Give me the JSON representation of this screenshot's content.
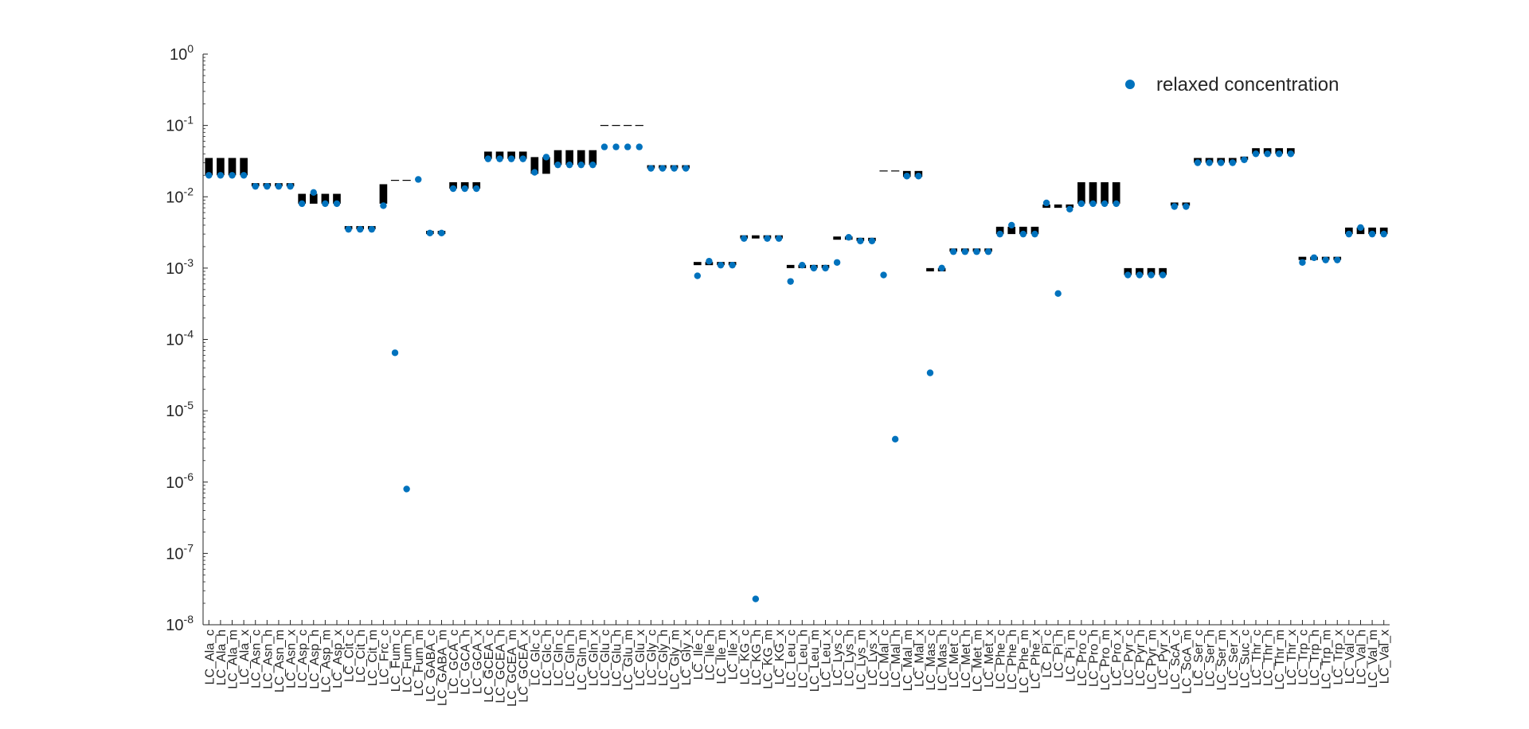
{
  "colors": {
    "marker": "#0072BD",
    "bound": "#000000",
    "axis": "#262626"
  },
  "chart_data": {
    "type": "scatter",
    "title": "",
    "xlabel": "",
    "ylabel": "",
    "yscale": "log",
    "ylim": [
      1e-08,
      1
    ],
    "grid": false,
    "legend": {
      "position": "top-right",
      "entries": [
        "relaxed concentration"
      ]
    },
    "y_tick_exponents": [
      0,
      -1,
      -2,
      -3,
      -4,
      -5,
      -6,
      -7,
      -8
    ],
    "categories": [
      "LC_Ala_c",
      "LC_Ala_h",
      "LC_Ala_m",
      "LC_Ala_x",
      "LC_Asn_c",
      "LC_Asn_h",
      "LC_Asn_m",
      "LC_Asn_x",
      "LC_Asp_c",
      "LC_Asp_h",
      "LC_Asp_m",
      "LC_Asp_x",
      "LC_Cit_c",
      "LC_Cit_h",
      "LC_Cit_m",
      "LC_Frc_c",
      "LC_Fum_c",
      "LC_Fum_h",
      "LC_Fum_m",
      "LC_GABA_c",
      "LC_GABA_m",
      "LC_GCA_c",
      "LC_GCA_h",
      "LC_GCA_x",
      "LC_GCEA_c",
      "LC_GCEA_h",
      "LC_GCEA_m",
      "LC_GCEA_x",
      "LC_Glc_c",
      "LC_Glc_h",
      "LC_Gln_c",
      "LC_Gln_h",
      "LC_Gln_m",
      "LC_Gln_x",
      "LC_Glu_c",
      "LC_Glu_h",
      "LC_Glu_m",
      "LC_Glu_x",
      "LC_Gly_c",
      "LC_Gly_h",
      "LC_Gly_m",
      "LC_Gly_x",
      "LC_Ile_c",
      "LC_Ile_h",
      "LC_Ile_m",
      "LC_Ile_x",
      "LC_KG_c",
      "LC_KG_h",
      "LC_KG_m",
      "LC_KG_x",
      "LC_Leu_c",
      "LC_Leu_h",
      "LC_Leu_m",
      "LC_Leu_x",
      "LC_Lys_c",
      "LC_Lys_h",
      "LC_Lys_m",
      "LC_Lys_x",
      "LC_Mal_c",
      "LC_Mal_h",
      "LC_Mal_m",
      "LC_Mal_x",
      "LC_Mas_c",
      "LC_Mas_h",
      "LC_Met_c",
      "LC_Met_h",
      "LC_Met_m",
      "LC_Met_x",
      "LC_Phe_c",
      "LC_Phe_h",
      "LC_Phe_m",
      "LC_Phe_x",
      "LC_Pi_c",
      "LC_Pi_h",
      "LC_Pi_m",
      "LC_Pro_c",
      "LC_Pro_h",
      "LC_Pro_m",
      "LC_Pro_x",
      "LC_Pyr_c",
      "LC_Pyr_h",
      "LC_Pyr_m",
      "LC_Pyr_x",
      "LC_ScA_c",
      "LC_ScA_m",
      "LC_Ser_c",
      "LC_Ser_h",
      "LC_Ser_m",
      "LC_Ser_x",
      "LC_Suc_c",
      "LC_Thr_c",
      "LC_Thr_h",
      "LC_Thr_m",
      "LC_Thr_x",
      "LC_Trp_c",
      "LC_Trp_h",
      "LC_Trp_m",
      "LC_Trp_x",
      "LC_Val_c",
      "LC_Val_h",
      "LC_Val_m",
      "LC_Val_x"
    ],
    "series": [
      {
        "name": "relaxed concentration",
        "marker": "dot",
        "values": [
          0.02,
          0.02,
          0.02,
          0.02,
          0.014,
          0.014,
          0.014,
          0.014,
          0.008,
          0.0115,
          0.008,
          0.008,
          0.0035,
          0.0035,
          0.0035,
          0.0075,
          6.5e-05,
          8e-07,
          0.0175,
          0.0031,
          0.0031,
          0.013,
          0.013,
          0.013,
          0.034,
          0.034,
          0.034,
          0.034,
          0.022,
          0.036,
          0.028,
          0.028,
          0.028,
          0.028,
          0.05,
          0.05,
          0.05,
          0.05,
          0.025,
          0.025,
          0.025,
          0.025,
          0.00078,
          0.00125,
          0.0011,
          0.0011,
          0.0026,
          2.3e-08,
          0.0026,
          0.0026,
          0.00065,
          0.0011,
          0.001,
          0.001,
          0.0012,
          0.0027,
          0.0024,
          0.0024,
          0.0008,
          4e-06,
          0.0195,
          0.0195,
          3.4e-05,
          0.001,
          0.0017,
          0.0017,
          0.0017,
          0.0017,
          0.003,
          0.004,
          0.003,
          0.003,
          0.0082,
          0.00044,
          0.0067,
          0.008,
          0.008,
          0.008,
          0.008,
          0.0008,
          0.0008,
          0.0008,
          0.0008,
          0.0073,
          0.0073,
          0.03,
          0.03,
          0.03,
          0.03,
          0.033,
          0.04,
          0.04,
          0.04,
          0.04,
          0.0012,
          0.0014,
          0.0013,
          0.0013,
          0.003,
          0.0037,
          0.003,
          0.003
        ]
      },
      {
        "name": "",
        "marker": "bar",
        "lower": [
          0.02,
          0.02,
          0.02,
          0.02,
          0.014,
          0.014,
          0.014,
          0.014,
          0.008,
          0.008,
          0.008,
          0.008,
          0.0035,
          0.0035,
          0.0035,
          0.008,
          null,
          null,
          null,
          0.003,
          0.003,
          0.013,
          0.013,
          0.013,
          0.034,
          0.034,
          0.034,
          0.034,
          0.021,
          0.021,
          0.028,
          0.028,
          0.028,
          0.028,
          null,
          null,
          null,
          null,
          0.025,
          0.025,
          0.025,
          0.025,
          0.0011,
          0.0011,
          0.0011,
          0.0011,
          0.0026,
          0.0026,
          0.0026,
          0.0026,
          0.001,
          0.001,
          0.001,
          0.001,
          0.0025,
          0.0025,
          0.0024,
          0.0024,
          null,
          null,
          0.019,
          0.019,
          0.0009,
          0.0009,
          0.0017,
          0.0017,
          0.0017,
          0.0017,
          0.003,
          0.003,
          0.003,
          0.003,
          0.007,
          0.007,
          0.007,
          0.008,
          0.008,
          0.008,
          0.008,
          0.0008,
          0.0008,
          0.0008,
          0.0008,
          0.0075,
          0.0075,
          0.03,
          0.03,
          0.03,
          0.03,
          0.033,
          0.04,
          0.04,
          0.04,
          0.04,
          0.0013,
          0.0013,
          0.0013,
          0.0013,
          0.003,
          0.003,
          0.003,
          0.003
        ],
        "upper": [
          0.035,
          0.035,
          0.035,
          0.035,
          0.015,
          0.015,
          0.015,
          0.015,
          0.011,
          0.011,
          0.011,
          0.011,
          0.0037,
          0.0037,
          0.0037,
          0.015,
          0.017,
          0.017,
          null,
          0.0033,
          0.0033,
          0.016,
          0.016,
          0.016,
          0.043,
          0.043,
          0.043,
          0.043,
          0.036,
          0.036,
          0.045,
          0.045,
          0.045,
          0.045,
          0.1,
          0.1,
          0.1,
          0.1,
          0.026,
          0.026,
          0.026,
          0.026,
          0.0012,
          0.0012,
          0.0012,
          0.0012,
          0.0026,
          0.0026,
          0.0026,
          0.0026,
          0.001,
          0.001,
          0.001,
          0.001,
          0.0026,
          0.0026,
          0.0025,
          0.0025,
          0.023,
          0.023,
          0.023,
          0.023,
          0.001,
          0.001,
          0.0017,
          0.0017,
          0.0017,
          0.0017,
          0.0038,
          0.0038,
          0.0038,
          0.0038,
          0.0078,
          0.0078,
          0.0078,
          0.016,
          0.016,
          0.016,
          0.016,
          0.001,
          0.001,
          0.001,
          0.001,
          0.0082,
          0.0082,
          0.035,
          0.035,
          0.035,
          0.035,
          0.034,
          0.048,
          0.048,
          0.048,
          0.048,
          0.0014,
          0.0014,
          0.0014,
          0.0014,
          0.0037,
          0.0037,
          0.0037,
          0.0037
        ]
      }
    ]
  }
}
